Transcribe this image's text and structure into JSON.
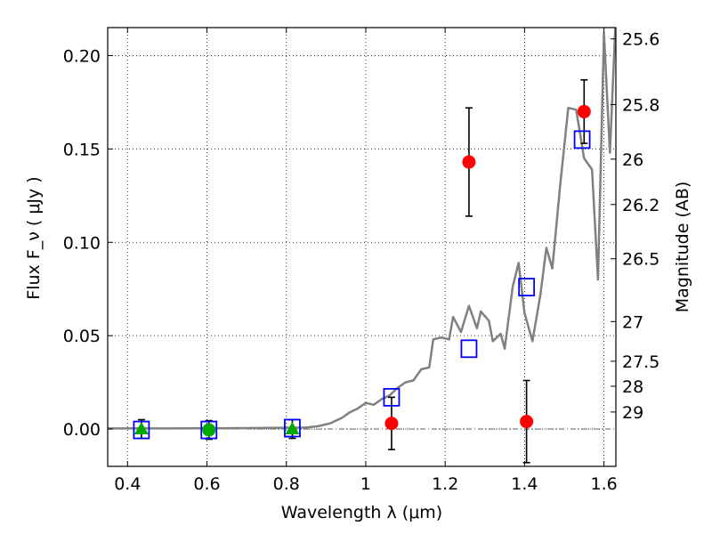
{
  "chart_data": {
    "type": "scatter",
    "xlabel": "Wavelength  λ (μm)",
    "ylabel": "Flux  F_ν  ( μJy )",
    "y2label": "Magnitude (AB)",
    "xlim": [
      0.35,
      1.63
    ],
    "ylim": [
      -0.02,
      0.215
    ],
    "grid": true,
    "x_ticks": [
      {
        "value": 0.4,
        "label": "0.4"
      },
      {
        "value": 0.6,
        "label": "0.6"
      },
      {
        "value": 0.8,
        "label": "0.8"
      },
      {
        "value": 1.0,
        "label": "1"
      },
      {
        "value": 1.2,
        "label": "1.2"
      },
      {
        "value": 1.4,
        "label": "1.4"
      },
      {
        "value": 1.6,
        "label": "1.6"
      }
    ],
    "y_ticks": [
      {
        "value": 0.0,
        "label": "0.00"
      },
      {
        "value": 0.05,
        "label": "0.05"
      },
      {
        "value": 0.1,
        "label": "0.10"
      },
      {
        "value": 0.15,
        "label": "0.15"
      },
      {
        "value": 0.2,
        "label": "0.20"
      }
    ],
    "mag_ticks": [
      {
        "value": 25.6,
        "label": "25.6"
      },
      {
        "value": 25.8,
        "label": "25.8"
      },
      {
        "value": 26.0,
        "label": "26"
      },
      {
        "value": 26.2,
        "label": "26.2"
      },
      {
        "value": 26.5,
        "label": "26.5"
      },
      {
        "value": 27.0,
        "label": "27"
      },
      {
        "value": 27.5,
        "label": "27.5"
      },
      {
        "value": 28.0,
        "label": "28"
      },
      {
        "value": 29.0,
        "label": "29"
      }
    ],
    "series": [
      {
        "name": "model spectrum",
        "kind": "line",
        "color": "#808080",
        "points": [
          [
            0.35,
            0.0003
          ],
          [
            0.5,
            0.0003
          ],
          [
            0.7,
            0.0005
          ],
          [
            0.85,
            0.0008
          ],
          [
            0.88,
            0.0015
          ],
          [
            0.91,
            0.003
          ],
          [
            0.94,
            0.006
          ],
          [
            0.96,
            0.009
          ],
          [
            0.98,
            0.011
          ],
          [
            1.0,
            0.014
          ],
          [
            1.02,
            0.013
          ],
          [
            1.04,
            0.016
          ],
          [
            1.06,
            0.018
          ],
          [
            1.08,
            0.022
          ],
          [
            1.1,
            0.025
          ],
          [
            1.12,
            0.026
          ],
          [
            1.14,
            0.032
          ],
          [
            1.16,
            0.033
          ],
          [
            1.17,
            0.048
          ],
          [
            1.19,
            0.049
          ],
          [
            1.21,
            0.048
          ],
          [
            1.22,
            0.06
          ],
          [
            1.24,
            0.052
          ],
          [
            1.26,
            0.066
          ],
          [
            1.28,
            0.054
          ],
          [
            1.29,
            0.063
          ],
          [
            1.31,
            0.058
          ],
          [
            1.32,
            0.047
          ],
          [
            1.34,
            0.051
          ],
          [
            1.35,
            0.043
          ],
          [
            1.37,
            0.076
          ],
          [
            1.385,
            0.089
          ],
          [
            1.4,
            0.062
          ],
          [
            1.42,
            0.047
          ],
          [
            1.44,
            0.072
          ],
          [
            1.455,
            0.097
          ],
          [
            1.47,
            0.086
          ],
          [
            1.49,
            0.131
          ],
          [
            1.51,
            0.172
          ],
          [
            1.53,
            0.171
          ],
          [
            1.55,
            0.145
          ],
          [
            1.57,
            0.139
          ],
          [
            1.585,
            0.08
          ],
          [
            1.6,
            0.212
          ],
          [
            1.615,
            0.148
          ],
          [
            1.63,
            0.222
          ]
        ]
      },
      {
        "name": "measured flux (red)",
        "kind": "points",
        "marker": "circle",
        "color": "#ff0000",
        "points": [
          {
            "x": 1.065,
            "y": 0.003,
            "err": 0.014
          },
          {
            "x": 1.26,
            "y": 0.143,
            "err": 0.029
          },
          {
            "x": 1.405,
            "y": 0.004,
            "err": 0.022
          },
          {
            "x": 1.55,
            "y": 0.17,
            "err": 0.017
          }
        ]
      },
      {
        "name": "measured flux (green)",
        "kind": "points",
        "marker": "circle",
        "color": "#00aa00",
        "points": [
          {
            "x": 0.605,
            "y": -0.0005,
            "err": 0.005
          }
        ]
      },
      {
        "name": "upper limits (green)",
        "kind": "points",
        "marker": "triangle",
        "color": "#00aa00",
        "points": [
          {
            "x": 0.435,
            "y": 0.0,
            "err": 0.005
          },
          {
            "x": 0.815,
            "y": 0.0,
            "err": 0.005
          }
        ]
      },
      {
        "name": "model photometry",
        "kind": "points",
        "marker": "square",
        "color": "#0000ff",
        "points": [
          {
            "x": 0.435,
            "y": -0.0005
          },
          {
            "x": 0.605,
            "y": -0.0005
          },
          {
            "x": 0.815,
            "y": 0.0005
          },
          {
            "x": 1.065,
            "y": 0.017
          },
          {
            "x": 1.26,
            "y": 0.043
          },
          {
            "x": 1.405,
            "y": 0.076
          },
          {
            "x": 1.545,
            "y": 0.155
          }
        ]
      }
    ]
  }
}
